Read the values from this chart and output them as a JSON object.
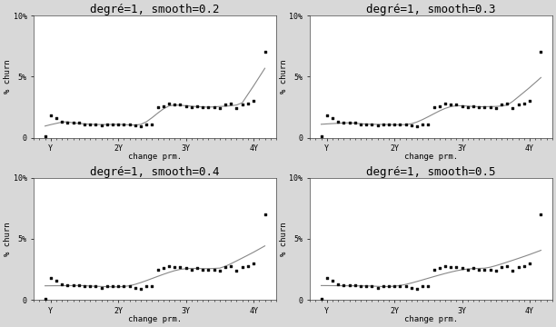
{
  "titles": [
    "degré=1, smooth=0.2",
    "degré=1, smooth=0.3",
    "degré=1, smooth=0.4",
    "degré=1, smooth=0.5"
  ],
  "smooth_params": [
    0.2,
    0.3,
    0.4,
    0.5
  ],
  "xlabel": "change prm.",
  "ylabel": "% churn",
  "xticks": [
    12,
    24,
    36,
    48
  ],
  "xtick_labels": [
    "Y",
    "2Y",
    "3Y",
    "4Y"
  ],
  "scatter_x": [
    11,
    12,
    13,
    14,
    15,
    16,
    17,
    18,
    19,
    20,
    21,
    22,
    23,
    24,
    25,
    26,
    27,
    28,
    29,
    30,
    31,
    32,
    33,
    34,
    35,
    36,
    37,
    38,
    39,
    40,
    41,
    42,
    43,
    44,
    45,
    46,
    47,
    48,
    50
  ],
  "scatter_y": [
    0.1,
    1.8,
    1.6,
    1.3,
    1.2,
    1.2,
    1.2,
    1.1,
    1.1,
    1.1,
    1.0,
    1.1,
    1.1,
    1.1,
    1.1,
    1.1,
    1.0,
    0.9,
    1.1,
    1.1,
    2.5,
    2.6,
    2.8,
    2.7,
    2.7,
    2.6,
    2.5,
    2.6,
    2.5,
    2.5,
    2.5,
    2.4,
    2.7,
    2.8,
    2.4,
    2.7,
    2.8,
    3.0,
    7.0
  ],
  "ylim": [
    0,
    10
  ],
  "yticks": [
    0,
    5,
    10
  ],
  "ytick_labels": [
    "0",
    "5%",
    "10%"
  ],
  "xlim": [
    9,
    52
  ],
  "background_color": "#d8d8d8",
  "axes_bg_color": "#ffffff",
  "scatter_color": "#111111",
  "line_color": "#888888",
  "title_fontsize": 9,
  "axis_fontsize": 6.5,
  "tick_fontsize": 6.0,
  "fig_width": 6.12,
  "fig_height": 3.6,
  "dpi": 100
}
